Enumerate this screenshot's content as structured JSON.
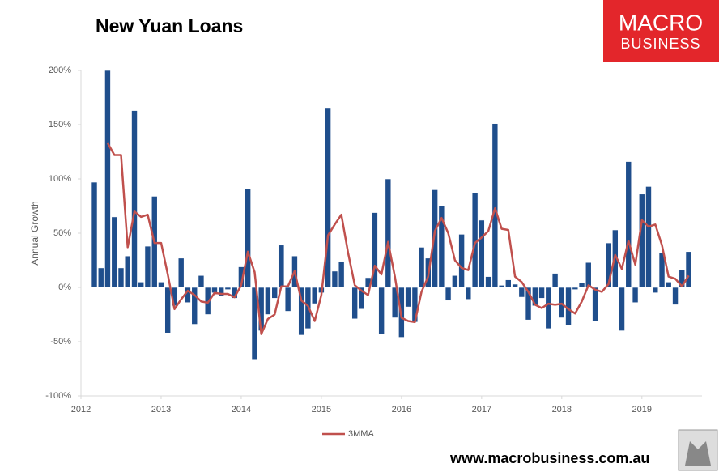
{
  "chart_data": {
    "type": "bar_line",
    "title": "New Yuan Loans",
    "ylabel": "Annual Growth",
    "x": [
      2012.167,
      2012.25,
      2012.333,
      2012.417,
      2012.5,
      2012.583,
      2012.667,
      2012.75,
      2012.833,
      2012.917,
      2013,
      2013.083,
      2013.167,
      2013.25,
      2013.333,
      2013.417,
      2013.5,
      2013.583,
      2013.667,
      2013.75,
      2013.833,
      2013.917,
      2014,
      2014.083,
      2014.167,
      2014.25,
      2014.333,
      2014.417,
      2014.5,
      2014.583,
      2014.667,
      2014.75,
      2014.833,
      2014.917,
      2015,
      2015.083,
      2015.167,
      2015.25,
      2015.333,
      2015.417,
      2015.5,
      2015.583,
      2015.667,
      2015.75,
      2015.833,
      2015.917,
      2016,
      2016.083,
      2016.167,
      2016.25,
      2016.333,
      2016.417,
      2016.5,
      2016.583,
      2016.667,
      2016.75,
      2016.833,
      2016.917,
      2017,
      2017.083,
      2017.167,
      2017.25,
      2017.333,
      2017.417,
      2017.5,
      2017.583,
      2017.667,
      2017.75,
      2017.833,
      2017.917,
      2018,
      2018.083,
      2018.167,
      2018.25,
      2018.333,
      2018.417,
      2018.5,
      2018.583,
      2018.667,
      2018.75,
      2018.833,
      2018.917,
      2019,
      2019.083,
      2019.167,
      2019.25,
      2019.333,
      2019.417,
      2019.5,
      2019.583
    ],
    "series": [
      {
        "type": "bar",
        "color": "#1f4e8c",
        "values": [
          97,
          18,
          200,
          65,
          18,
          29,
          163,
          5,
          38,
          84,
          5,
          -42,
          -17,
          27,
          -14,
          -34,
          11,
          -25,
          -5,
          -8,
          -2,
          -10,
          19,
          91,
          -67,
          -40,
          -25,
          -10,
          39,
          -22,
          29,
          -44,
          -38,
          -15,
          -5,
          165,
          15,
          24,
          0,
          -29,
          -20,
          9,
          69,
          -43,
          100,
          -28,
          -46,
          -18,
          -32,
          37,
          27,
          90,
          75,
          -12,
          11,
          49,
          -11,
          87,
          62,
          10,
          151,
          2,
          7,
          3,
          -9,
          -30,
          -17,
          -10,
          -38,
          13,
          -28,
          -35,
          -2,
          4,
          23,
          -31,
          0,
          41,
          53,
          -40,
          116,
          -14,
          86,
          93,
          -5,
          32,
          5,
          -16,
          16,
          33
        ]
      },
      {
        "type": "line",
        "name": "3MMA",
        "color": "#c0504d",
        "values": [
          null,
          null,
          133,
          122,
          122,
          37,
          70,
          65,
          67,
          41,
          41,
          12,
          -20,
          -11,
          -3,
          -7,
          -13,
          -14,
          -5,
          -6,
          -6,
          -9,
          2,
          33,
          14,
          -43,
          -29,
          -25,
          1,
          1,
          15,
          -12,
          -17,
          -31,
          -7,
          48,
          58,
          67,
          32,
          2,
          -3,
          -7,
          20,
          12,
          42,
          10,
          -28,
          -31,
          -32,
          -4,
          10,
          52,
          64,
          50,
          25,
          18,
          16,
          41,
          46,
          52,
          73,
          54,
          53,
          10,
          5,
          -4,
          -16,
          -19,
          -15,
          -16,
          -15,
          -20,
          -24,
          -13,
          2,
          -2,
          -4,
          3,
          30,
          17,
          43,
          21,
          62,
          56,
          58,
          39,
          10,
          8,
          1,
          11
        ]
      }
    ],
    "xlim": [
      2012,
      2019.75
    ],
    "xticks": [
      2012,
      2013,
      2014,
      2015,
      2016,
      2017,
      2018,
      2019
    ],
    "ylim": [
      -100,
      200
    ],
    "yticks": [
      {
        "value": -100,
        "label": "-100%"
      },
      {
        "value": -50,
        "label": "-50%"
      },
      {
        "value": 0,
        "label": "0%"
      },
      {
        "value": 50,
        "label": "50%"
      },
      {
        "value": 100,
        "label": "100%"
      },
      {
        "value": 150,
        "label": "150%"
      },
      {
        "value": 200,
        "label": "200%"
      }
    ],
    "legend": "bottom"
  },
  "logo": {
    "line1": "MACRO",
    "line2": "BUSINESS"
  },
  "footer": "www.macrobusiness.com.au"
}
